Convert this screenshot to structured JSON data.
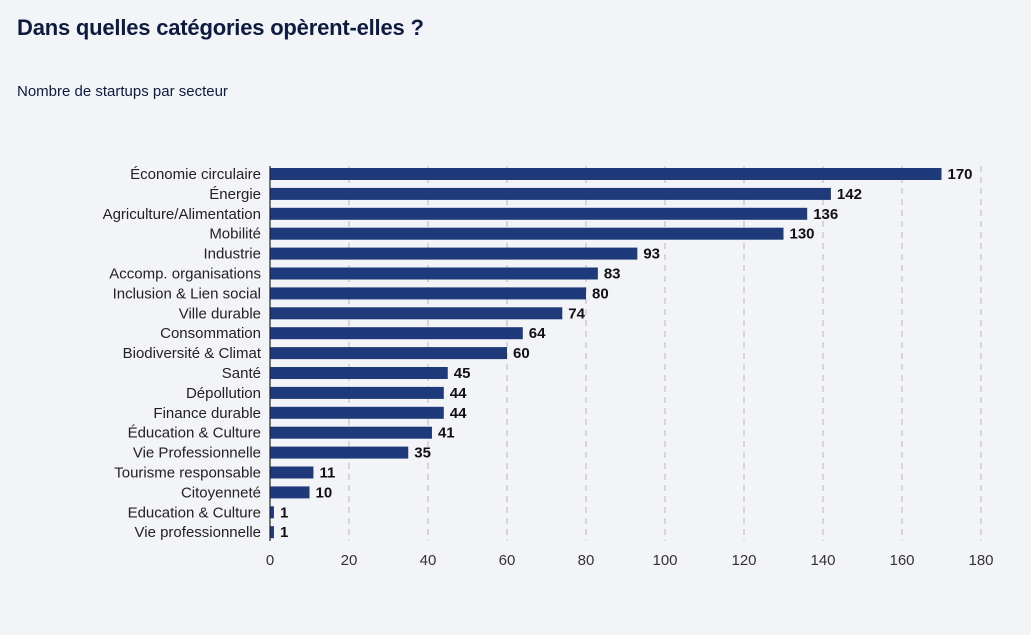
{
  "header": {
    "title": "Dans quelles catégories opèrent-elles ?",
    "subtitle": "Nombre de startups par secteur"
  },
  "colors": {
    "bar": "#1f3a7a",
    "background": "#f3f4f8",
    "grid": "#b9b9b9",
    "title": "#0d1b3e"
  },
  "chart_data": {
    "type": "bar",
    "orientation": "horizontal",
    "categories": [
      "Économie circulaire",
      "Énergie",
      "Agriculture/Alimentation",
      "Mobilité",
      "Industrie",
      "Accomp. organisations",
      "Inclusion & Lien social",
      "Ville durable",
      "Consommation",
      "Biodiversité & Climat",
      "Santé",
      "Dépollution",
      "Finance durable",
      "Éducation & Culture",
      "Vie Professionnelle",
      "Tourisme responsable",
      "Citoyenneté",
      "Education & Culture",
      "Vie professionnelle"
    ],
    "values": [
      170,
      142,
      136,
      130,
      93,
      83,
      80,
      74,
      64,
      60,
      45,
      44,
      44,
      41,
      35,
      11,
      10,
      1,
      1
    ],
    "xticks": [
      0,
      20,
      40,
      60,
      80,
      100,
      120,
      140,
      160,
      180
    ],
    "xlim": [
      0,
      180
    ],
    "grid": "vertical dashed",
    "data_labels": true
  }
}
